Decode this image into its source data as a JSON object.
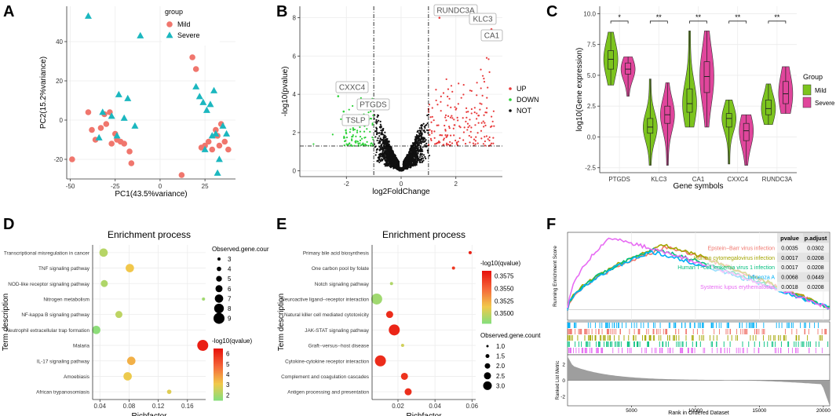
{
  "panel_labels": [
    "A",
    "B",
    "C",
    "D",
    "E",
    "F"
  ],
  "colors": {
    "mild": "#F0766D",
    "severe": "#1BB7BF",
    "up": "#E8393A",
    "down": "#2FD23A",
    "not": "#111111",
    "mild_violin": "#7CC41E",
    "severe_violin": "#E0469C",
    "gsea": [
      "#F0766D",
      "#A3A500",
      "#00BF7D",
      "#00B0F6",
      "#E76BF3"
    ]
  },
  "chart_data": [
    {
      "id": "A",
      "type": "scatter",
      "xlabel": "PC1(43.5%variance)",
      "ylabel": "PC2(15.2%variance)",
      "xlim": [
        -52,
        42
      ],
      "ylim": [
        -30,
        58
      ],
      "xticks": [
        -50,
        -25,
        0,
        25
      ],
      "yticks": [
        -20,
        0,
        20,
        40
      ],
      "legend_title": "group",
      "series": [
        {
          "name": "Mild",
          "marker": "circle",
          "points": [
            [
              -49,
              -20
            ],
            [
              -40,
              4
            ],
            [
              -38,
              -5
            ],
            [
              -36,
              -10
            ],
            [
              -33,
              -4
            ],
            [
              -31,
              3
            ],
            [
              -30,
              -2
            ],
            [
              -28,
              4
            ],
            [
              -27,
              -12
            ],
            [
              -25,
              -7
            ],
            [
              -24,
              -10
            ],
            [
              -22,
              -11
            ],
            [
              -20,
              -12
            ],
            [
              -17,
              -16
            ],
            [
              -16,
              -22
            ],
            [
              12,
              -28
            ],
            [
              18,
              32
            ],
            [
              20,
              26
            ],
            [
              23,
              -14
            ],
            [
              25,
              -13
            ],
            [
              27,
              -11
            ],
            [
              29,
              -15
            ],
            [
              31,
              -5
            ],
            [
              32,
              -8
            ],
            [
              33,
              -13
            ],
            [
              34,
              -2
            ],
            [
              36,
              -11
            ],
            [
              38,
              -15
            ]
          ]
        },
        {
          "name": "Severe",
          "marker": "triangle",
          "points": [
            [
              -40,
              53
            ],
            [
              -32,
              4
            ],
            [
              -34,
              -9
            ],
            [
              -27,
              2
            ],
            [
              -23,
              13
            ],
            [
              -24,
              -8
            ],
            [
              -20,
              1
            ],
            [
              -18,
              11
            ],
            [
              -14,
              -3
            ],
            [
              -11,
              43
            ],
            [
              20,
              17
            ],
            [
              22,
              12
            ],
            [
              24,
              9
            ],
            [
              25,
              -15
            ],
            [
              26,
              5
            ],
            [
              28,
              8
            ],
            [
              29,
              -8
            ],
            [
              30,
              15
            ],
            [
              31,
              -7
            ],
            [
              32,
              -27
            ],
            [
              33,
              -20
            ],
            [
              35,
              -3
            ],
            [
              37,
              -7
            ]
          ]
        }
      ]
    },
    {
      "id": "B",
      "type": "scatter",
      "xlabel": "log2FoldChange",
      "ylabel": "-log10(pvalue)",
      "xlim": [
        -3.7,
        3.7
      ],
      "ylim": [
        -0.3,
        8.6
      ],
      "xticks": [
        -2,
        0,
        2
      ],
      "yticks": [
        0,
        2,
        4,
        6,
        8
      ],
      "vlines": [
        -1,
        1
      ],
      "hline": 1.3,
      "legend": [
        "UP",
        "DOWN",
        "NOT"
      ],
      "labeled_genes": [
        {
          "gene": "RUNDC3A",
          "x": 1.4,
          "y": 8.0
        },
        {
          "gene": "KLC3",
          "x": 3.1,
          "y": 8.1
        },
        {
          "gene": "CA1",
          "x": 3.3,
          "y": 7.4
        },
        {
          "gene": "CXXC4",
          "x": -2.3,
          "y": 3.9
        },
        {
          "gene": "PTGDS",
          "x": -1.55,
          "y": 3.6
        },
        {
          "gene": "TSLP",
          "x": -2.1,
          "y": 3.1
        }
      ]
    },
    {
      "id": "C",
      "type": "violin",
      "xlabel": "Gene symbols",
      "ylabel": "log10(Gene expression)",
      "ylim": [
        -2.9,
        10.6
      ],
      "yticks": [
        -2.5,
        0.0,
        2.5,
        5.0,
        7.5,
        10.0
      ],
      "categories": [
        "PTGDS",
        "KLC3",
        "CA1",
        "CXXC4",
        "RUNDC3A"
      ],
      "significance": [
        "*",
        "**",
        "**",
        "**",
        "**"
      ],
      "legend_title": "Group",
      "groups": [
        "Mild",
        "Severe"
      ],
      "series": [
        {
          "name": "Mild",
          "stats": [
            {
              "min": 4.2,
              "q1": 5.5,
              "med": 6.3,
              "q3": 7.0,
              "max": 8.5
            },
            {
              "min": -2.3,
              "q1": 0.3,
              "med": 0.8,
              "q3": 1.5,
              "max": 4.7
            },
            {
              "min": 0.8,
              "q1": 2.0,
              "med": 2.7,
              "q3": 3.9,
              "max": 8.6
            },
            {
              "min": -2.2,
              "q1": 0.8,
              "med": 1.5,
              "q3": 1.9,
              "max": 3.0
            },
            {
              "min": 1.0,
              "q1": 1.8,
              "med": 2.3,
              "q3": 3.0,
              "max": 4.3
            }
          ]
        },
        {
          "name": "Severe",
          "stats": [
            {
              "min": 3.3,
              "q1": 5.1,
              "med": 5.5,
              "q3": 6.0,
              "max": 6.5
            },
            {
              "min": -2.3,
              "q1": 1.1,
              "med": 1.8,
              "q3": 2.5,
              "max": 4.4
            },
            {
              "min": 0.8,
              "q1": 3.6,
              "med": 4.9,
              "q3": 6.1,
              "max": 8.6
            },
            {
              "min": -2.3,
              "q1": -0.3,
              "med": 0.5,
              "q3": 1.1,
              "max": 1.8
            },
            {
              "min": 1.9,
              "q1": 2.7,
              "med": 3.5,
              "q3": 4.5,
              "max": 5.7
            }
          ]
        }
      ]
    },
    {
      "id": "D",
      "type": "dot",
      "title": "Enrichment process",
      "xlabel": "Richfactor",
      "ylabel": "Term description",
      "xlim": [
        0.03,
        0.185
      ],
      "xticks": [
        0.04,
        0.08,
        0.12,
        0.16
      ],
      "size_legend_title": "Observed.gene.cour",
      "size_levels": [
        3,
        4,
        5,
        6,
        7,
        8,
        9
      ],
      "color_legend_title": "-log10(qvalue)",
      "color_ticks": [
        2,
        3,
        4,
        5,
        6
      ],
      "color_range": [
        1.5,
        6.5
      ],
      "points": [
        {
          "term": "Transcriptional misregulation in cancer",
          "x": 0.045,
          "count": 7,
          "q": 2.3
        },
        {
          "term": "TNF signaling pathway",
          "x": 0.081,
          "count": 7,
          "q": 3.2
        },
        {
          "term": "NOD-like receptor signaling pathway",
          "x": 0.046,
          "count": 6,
          "q": 2.2
        },
        {
          "term": "Nitrogen metabolism",
          "x": 0.182,
          "count": 3,
          "q": 2.0
        },
        {
          "term": "NF-kappa B signaling pathway",
          "x": 0.066,
          "count": 6,
          "q": 2.4
        },
        {
          "term": "Neutrophil extracellular trap formation",
          "x": 0.035,
          "count": 7,
          "q": 1.7
        },
        {
          "term": "Malaria",
          "x": 0.181,
          "count": 9,
          "q": 6.3
        },
        {
          "term": "IL-17 signaling pathway",
          "x": 0.083,
          "count": 7,
          "q": 3.6
        },
        {
          "term": "Amoebiasis",
          "x": 0.078,
          "count": 7,
          "q": 3.1
        },
        {
          "term": "African trypanosomiasis",
          "x": 0.135,
          "count": 4,
          "q": 2.9
        }
      ]
    },
    {
      "id": "E",
      "type": "dot",
      "title": "Enrichment process",
      "xlabel": "Richfactor",
      "ylabel": "Term description",
      "xlim": [
        0.006,
        0.062
      ],
      "xticks": [
        0.02,
        0.04,
        0.06
      ],
      "color_legend_title": "-log10(qvalue)",
      "color_ticks": [
        0.35,
        0.3525,
        0.355,
        0.3575
      ],
      "color_tick_labels": [
        "0.3500",
        "0.3525",
        "0.3550",
        "0.3575"
      ],
      "color_range": [
        0.348,
        0.3585
      ],
      "size_legend_title": "Observed.gene.count",
      "size_levels": [
        1.0,
        1.5,
        2.0,
        2.5,
        3.0
      ],
      "size_tick_labels": [
        "1.0",
        "1.5",
        "2.0",
        "2.5",
        "3.0"
      ],
      "points": [
        {
          "term": "Primary bile acid biosynthesis",
          "x": 0.059,
          "count": 1,
          "q": 0.358
        },
        {
          "term": "One carbon pool by folate",
          "x": 0.05,
          "count": 1,
          "q": 0.357
        },
        {
          "term": "Notch signaling pathway",
          "x": 0.0165,
          "count": 1,
          "q": 0.3495
        },
        {
          "term": "Neuroactive ligand--receptor interaction",
          "x": 0.0085,
          "count": 3,
          "q": 0.349
        },
        {
          "term": "Natural killer cell mediated cytotoxicity",
          "x": 0.0155,
          "count": 2,
          "q": 0.3575
        },
        {
          "term": "JAK-STAT signaling pathway",
          "x": 0.018,
          "count": 3,
          "q": 0.3578
        },
        {
          "term": "Graft--versus--host disease",
          "x": 0.0225,
          "count": 1,
          "q": 0.3505
        },
        {
          "term": "Cytokine-cytokine receptor interaction",
          "x": 0.0105,
          "count": 3,
          "q": 0.3575
        },
        {
          "term": "Complement and coagulation cascades",
          "x": 0.0235,
          "count": 2,
          "q": 0.3572
        },
        {
          "term": "Antigen processing and presentation",
          "x": 0.0255,
          "count": 2,
          "q": 0.3574
        }
      ]
    },
    {
      "id": "F",
      "type": "line",
      "ylabel": "Running Enrichment Score",
      "ylabel2": "Ranked List Metric",
      "xlabel": "Rank in Ordered Dataset",
      "xlim": [
        0,
        20500
      ],
      "xticks": [
        5000,
        10000,
        15000,
        20000
      ],
      "metric_ylim": [
        -3.2,
        3.2
      ],
      "metric_yticks": [
        2,
        0,
        -2
      ],
      "table_headers": [
        "pvalue",
        "p.adjust"
      ],
      "series": [
        {
          "name": "Epstein−Barr virus infection",
          "pvalue": "0.0035",
          "padjust": "0.0302"
        },
        {
          "name": "Human cytomegalovirus infection",
          "pvalue": "0.0017",
          "padjust": "0.0208"
        },
        {
          "name": "Human T−cell leukemia virus 1 infection",
          "pvalue": "0.0017",
          "padjust": "0.0208"
        },
        {
          "name": "Influenza A",
          "pvalue": "0.0068",
          "padjust": "0.0449"
        },
        {
          "name": "Systemic lupus erythematosus",
          "pvalue": "0.0018",
          "padjust": "0.0208"
        }
      ]
    }
  ]
}
